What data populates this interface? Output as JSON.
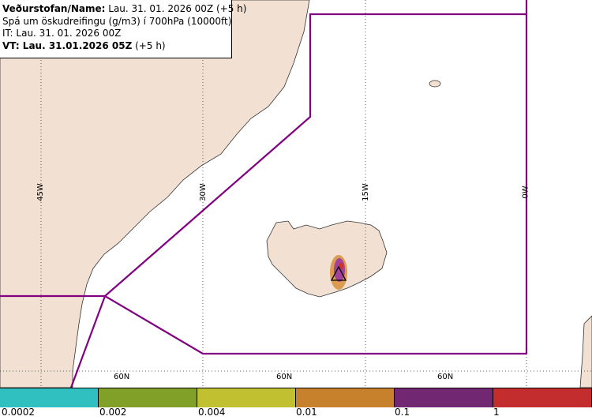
{
  "info": {
    "line1_bold": "Veðurstofan/Name:",
    "line1_rest": " Lau. 31. 01. 2026 00Z (+5 h)",
    "line2": "Spá um öskudreifingu (g/m3) í 700hPa (10000ft)",
    "line3": "IT: Lau. 31. 01. 2026 00Z",
    "line4_bold": "VT: Lau. 31.01.2026 05Z",
    "line4_rest": " (+5 h)"
  },
  "grid": {
    "meridians": [
      "45W",
      "30W",
      "15W",
      "0W"
    ],
    "parallels": [
      "60N",
      "60N",
      "60N"
    ]
  },
  "legend": {
    "colors": [
      "#33cccc",
      "#88aa2a",
      "#cccc33",
      "#d48a30",
      "#7a2a7a",
      "#d03030"
    ],
    "ticks": [
      "0.0002",
      "0.002",
      "0.004",
      "0.01",
      "0.1",
      "1"
    ]
  },
  "colors": {
    "land": "#f2e0d2",
    "boundary": "#800080",
    "volcano_symbol": "triangle"
  }
}
